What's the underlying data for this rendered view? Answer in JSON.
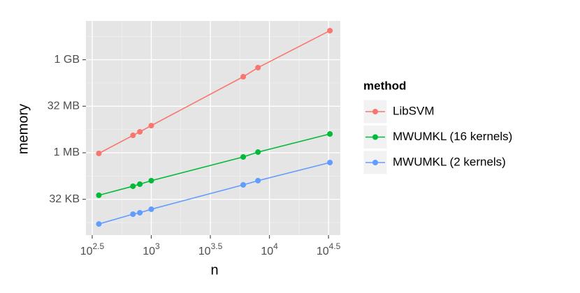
{
  "chart_data": {
    "type": "line",
    "x_label": "n",
    "y_label": "memory",
    "legend_title": "method",
    "legend": "right",
    "log_x": true,
    "log_y": true,
    "grid": true,
    "x": [
      360,
      700,
      800,
      1000,
      6000,
      8000,
      32500
    ],
    "series": [
      {
        "name": "LibSVM",
        "color": "#F8766D",
        "values": [
          1000000,
          3830000,
          4980000,
          7900000,
          302000000,
          595000000,
          9350000000
        ]
      },
      {
        "name": "MWUMKL (16 kernels)",
        "color": "#00BA38",
        "values": [
          44200,
          86600,
          101000,
          131000,
          766000,
          1100000,
          4250000
        ]
      },
      {
        "name": "MWUMKL (2 kernels)",
        "color": "#619CFF",
        "values": [
          5200,
          10800,
          12000,
          15600,
          95800,
          131000,
          506000
        ]
      }
    ],
    "xlim": [
      280,
      39800
    ],
    "ylim": [
      2272,
      19300000000
    ],
    "xticks": [
      {
        "value": 316.23,
        "label": "10",
        "sup": "2.5"
      },
      {
        "value": 1000,
        "label": "10",
        "sup": "3"
      },
      {
        "value": 3162.28,
        "label": "10",
        "sup": "3.5"
      },
      {
        "value": 10000,
        "label": "10",
        "sup": "4"
      },
      {
        "value": 31622.78,
        "label": "10",
        "sup": "4.5"
      }
    ],
    "yticks": [
      {
        "value": 32768,
        "label": "32 KB"
      },
      {
        "value": 1048576,
        "label": "1 MB"
      },
      {
        "value": 33554432,
        "label": "32 MB"
      },
      {
        "value": 1073741824,
        "label": "1 GB"
      }
    ]
  }
}
